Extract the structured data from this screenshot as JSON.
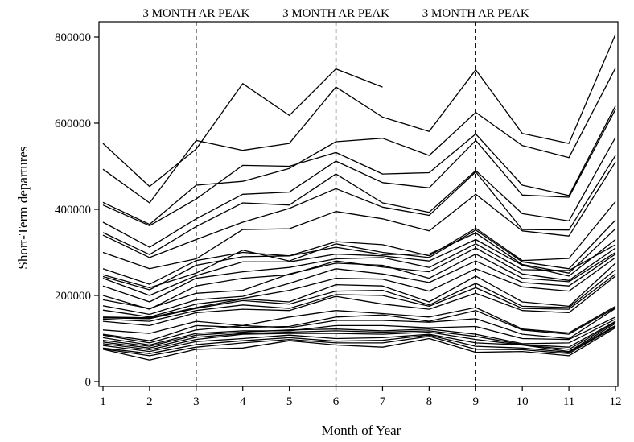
{
  "chart_data": {
    "type": "line",
    "xlabel": "Month of Year",
    "ylabel": "Short-Term departures",
    "xlim": [
      1,
      12
    ],
    "ylim": [
      0,
      800000
    ],
    "x": [
      1,
      2,
      3,
      4,
      5,
      6,
      7,
      8,
      9,
      10,
      11,
      12
    ],
    "x_ticks": [
      "1",
      "2",
      "3",
      "4",
      "5",
      "6",
      "7",
      "8",
      "9",
      "10",
      "11",
      "12"
    ],
    "y_ticks": [
      {
        "value": 0,
        "label": "0"
      },
      {
        "value": 200000,
        "label": "200000"
      },
      {
        "value": 400000,
        "label": "400000"
      },
      {
        "value": 600000,
        "label": "600000"
      },
      {
        "value": 800000,
        "label": "800000"
      }
    ],
    "reference_lines": [
      {
        "x": 3,
        "label": "3 MONTH AR PEAK"
      },
      {
        "x": 6,
        "label": "3 MONTH AR PEAK"
      },
      {
        "x": 9,
        "label": "3 MONTH AR PEAK"
      }
    ],
    "line_color": "#000000",
    "series": [
      {
        "values": [
          553000,
          453000,
          540000,
          692000,
          618000,
          726000,
          684000,
          null,
          null,
          null,
          null,
          null
        ]
      },
      {
        "values": [
          493000,
          415000,
          560000,
          537000,
          553000,
          684000,
          614000,
          581000,
          724000,
          576000,
          553000,
          806000
        ]
      },
      {
        "values": [
          416000,
          365000,
          456000,
          465000,
          495000,
          557000,
          565000,
          525000,
          625000,
          548000,
          520000,
          728000
        ]
      },
      {
        "values": [
          410000,
          362000,
          424000,
          502000,
          500000,
          532000,
          482000,
          485000,
          575000,
          456000,
          432000,
          640000
        ]
      },
      {
        "values": [
          370000,
          312000,
          378000,
          435000,
          440000,
          512000,
          462000,
          450000,
          560000,
          433000,
          428000,
          632000
        ]
      },
      {
        "values": [
          346000,
          295000,
          360000,
          415000,
          410000,
          482000,
          415000,
          393000,
          490000,
          390000,
          373000,
          567000
        ]
      },
      {
        "values": [
          340000,
          288000,
          330000,
          370000,
          402000,
          448000,
          405000,
          386000,
          487000,
          353000,
          352000,
          525000
        ]
      },
      {
        "values": [
          300000,
          262000,
          285000,
          353000,
          355000,
          395000,
          378000,
          350000,
          435000,
          350000,
          338000,
          510000
        ]
      },
      {
        "values": [
          262000,
          226000,
          281000,
          300000,
          292000,
          325000,
          318000,
          292000,
          356000,
          281000,
          286000,
          418000
        ]
      },
      {
        "values": [
          248000,
          218000,
          252000,
          305000,
          280000,
          320000,
          300000,
          288000,
          352000,
          278000,
          262000,
          375000
        ]
      },
      {
        "values": [
          244000,
          213000,
          270000,
          290000,
          292000,
          312000,
          295000,
          296000,
          345000,
          272000,
          252000,
          355000
        ]
      },
      {
        "values": [
          240000,
          200000,
          246000,
          278000,
          278000,
          296000,
          292000,
          280000,
          330000,
          270000,
          245000,
          330000
        ]
      },
      {
        "values": [
          222000,
          185000,
          240000,
          255000,
          265000,
          285000,
          288000,
          265000,
          320000,
          260000,
          258000,
          318000
        ]
      },
      {
        "values": [
          200000,
          168000,
          222000,
          240000,
          248000,
          280000,
          266000,
          255000,
          310000,
          250000,
          235000,
          310000
        ]
      },
      {
        "values": [
          190000,
          170000,
          205000,
          212000,
          250000,
          275000,
          270000,
          240000,
          296000,
          240000,
          232000,
          300000
        ]
      },
      {
        "values": [
          176000,
          156000,
          190000,
          198000,
          228000,
          262000,
          250000,
          230000,
          280000,
          230000,
          222000,
          296000
        ]
      },
      {
        "values": [
          166000,
          150000,
          180000,
          193000,
          212000,
          240000,
          238000,
          210000,
          262000,
          220000,
          210000,
          288000
        ]
      },
      {
        "values": [
          150000,
          148000,
          172000,
          192000,
          185000,
          225000,
          222000,
          185000,
          245000,
          185000,
          175000,
          275000
        ]
      },
      {
        "values": [
          148000,
          146000,
          170000,
          188000,
          180000,
          210000,
          212000,
          178000,
          228000,
          175000,
          172000,
          260000
        ]
      },
      {
        "values": [
          145000,
          140000,
          165000,
          178000,
          170000,
          202000,
          200000,
          175000,
          218000,
          170000,
          168000,
          250000
        ]
      },
      {
        "values": [
          140000,
          130000,
          160000,
          168000,
          165000,
          198000,
          180000,
          168000,
          205000,
          165000,
          160000,
          245000
        ]
      },
      {
        "values": [
          120000,
          112000,
          140000,
          130000,
          150000,
          165000,
          158000,
          150000,
          172000,
          122000,
          113000,
          175000
        ]
      },
      {
        "values": [
          110000,
          95000,
          130000,
          126000,
          128000,
          150000,
          155000,
          140000,
          165000,
          120000,
          110000,
          172000
        ]
      },
      {
        "values": [
          108000,
          90000,
          120000,
          130000,
          125000,
          142000,
          142000,
          138000,
          146000,
          110000,
          100000,
          170000
        ]
      },
      {
        "values": [
          102000,
          85000,
          112000,
          118000,
          118000,
          130000,
          130000,
          125000,
          128000,
          100000,
          98000,
          150000
        ]
      },
      {
        "values": [
          96000,
          82000,
          108000,
          115000,
          120000,
          122000,
          118000,
          122000,
          110000,
          88000,
          90000,
          145000
        ]
      },
      {
        "values": [
          92000,
          78000,
          103000,
          112000,
          115000,
          118000,
          115000,
          118000,
          105000,
          86000,
          80000,
          140000
        ]
      },
      {
        "values": [
          88000,
          74000,
          98000,
          110000,
          112000,
          112000,
          110000,
          115000,
          98000,
          85000,
          75000,
          138000
        ]
      },
      {
        "values": [
          84000,
          70000,
          93000,
          100000,
          108000,
          100000,
          102000,
          110000,
          90000,
          85000,
          70000,
          135000
        ]
      },
      {
        "values": [
          78000,
          65000,
          86000,
          95000,
          102000,
          94000,
          96000,
          108000,
          82000,
          78000,
          68000,
          130000
        ]
      },
      {
        "values": [
          76000,
          60000,
          80000,
          90000,
          98000,
          90000,
          90000,
          105000,
          75000,
          74000,
          65000,
          128000
        ]
      },
      {
        "values": [
          75000,
          50000,
          75000,
          78000,
          95000,
          85000,
          80000,
          100000,
          68000,
          70000,
          60000,
          125000
        ]
      }
    ]
  }
}
